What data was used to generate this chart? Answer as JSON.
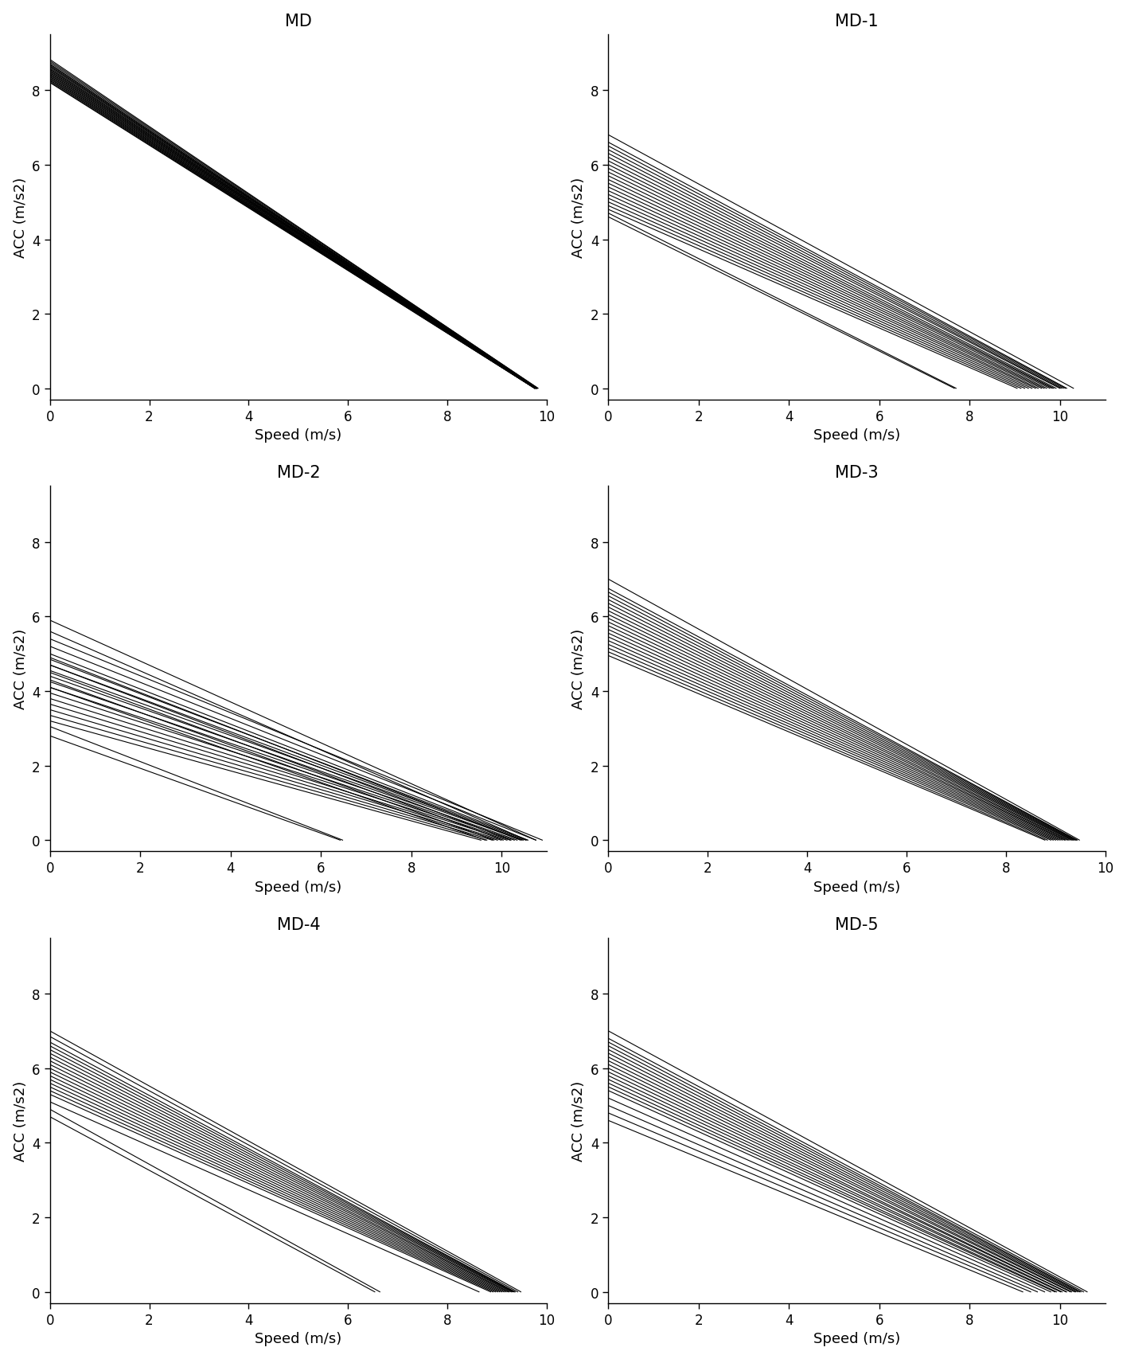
{
  "subplots": [
    {
      "title": "MD",
      "xlim": [
        0,
        10
      ],
      "ylim": [
        -0.3,
        9.5
      ],
      "xticks": [
        0,
        2,
        4,
        6,
        8,
        10
      ],
      "yticks": [
        0,
        2,
        4,
        6,
        8
      ],
      "lines": [
        {
          "intercept": 8.82,
          "slope": 0.898
        },
        {
          "intercept": 8.78,
          "slope": 0.893
        },
        {
          "intercept": 8.74,
          "slope": 0.89
        },
        {
          "intercept": 8.7,
          "slope": 0.887
        },
        {
          "intercept": 8.68,
          "slope": 0.885
        },
        {
          "intercept": 8.65,
          "slope": 0.882
        },
        {
          "intercept": 8.63,
          "slope": 0.88
        },
        {
          "intercept": 8.6,
          "slope": 0.877
        },
        {
          "intercept": 8.57,
          "slope": 0.875
        },
        {
          "intercept": 8.55,
          "slope": 0.873
        },
        {
          "intercept": 8.52,
          "slope": 0.87
        },
        {
          "intercept": 8.5,
          "slope": 0.868
        },
        {
          "intercept": 8.47,
          "slope": 0.865
        },
        {
          "intercept": 8.45,
          "slope": 0.863
        },
        {
          "intercept": 8.42,
          "slope": 0.861
        },
        {
          "intercept": 8.4,
          "slope": 0.859
        },
        {
          "intercept": 8.37,
          "slope": 0.857
        },
        {
          "intercept": 8.35,
          "slope": 0.855
        },
        {
          "intercept": 8.32,
          "slope": 0.852
        },
        {
          "intercept": 8.3,
          "slope": 0.85
        },
        {
          "intercept": 8.27,
          "slope": 0.847
        },
        {
          "intercept": 8.25,
          "slope": 0.845
        },
        {
          "intercept": 8.22,
          "slope": 0.842
        },
        {
          "intercept": 8.2,
          "slope": 0.84
        }
      ]
    },
    {
      "title": "MD-1",
      "xlim": [
        0,
        11
      ],
      "ylim": [
        -0.3,
        9.5
      ],
      "xticks": [
        0,
        2,
        4,
        6,
        8,
        10
      ],
      "yticks": [
        0,
        2,
        4,
        6,
        8
      ],
      "lines": [
        {
          "intercept": 6.8,
          "slope": 0.66
        },
        {
          "intercept": 6.6,
          "slope": 0.65
        },
        {
          "intercept": 6.5,
          "slope": 0.642
        },
        {
          "intercept": 6.4,
          "slope": 0.635
        },
        {
          "intercept": 6.3,
          "slope": 0.628
        },
        {
          "intercept": 6.2,
          "slope": 0.62
        },
        {
          "intercept": 6.1,
          "slope": 0.615
        },
        {
          "intercept": 6.0,
          "slope": 0.608
        },
        {
          "intercept": 5.9,
          "slope": 0.6
        },
        {
          "intercept": 5.8,
          "slope": 0.593
        },
        {
          "intercept": 5.7,
          "slope": 0.587
        },
        {
          "intercept": 5.6,
          "slope": 0.58
        },
        {
          "intercept": 5.5,
          "slope": 0.573
        },
        {
          "intercept": 5.4,
          "slope": 0.567
        },
        {
          "intercept": 5.3,
          "slope": 0.56
        },
        {
          "intercept": 5.2,
          "slope": 0.554
        },
        {
          "intercept": 5.1,
          "slope": 0.548
        },
        {
          "intercept": 5.0,
          "slope": 0.542
        },
        {
          "intercept": 4.9,
          "slope": 0.536
        },
        {
          "intercept": 4.8,
          "slope": 0.53
        },
        {
          "intercept": 4.7,
          "slope": 0.61
        },
        {
          "intercept": 4.6,
          "slope": 0.6
        }
      ]
    },
    {
      "title": "MD-2",
      "xlim": [
        0,
        11
      ],
      "ylim": [
        -0.3,
        9.5
      ],
      "xticks": [
        0,
        2,
        4,
        6,
        8,
        10
      ],
      "yticks": [
        0,
        2,
        4,
        6,
        8
      ],
      "lines": [
        {
          "intercept": 5.9,
          "slope": 0.548
        },
        {
          "intercept": 5.6,
          "slope": 0.53
        },
        {
          "intercept": 5.4,
          "slope": 0.495
        },
        {
          "intercept": 5.2,
          "slope": 0.483
        },
        {
          "intercept": 5.0,
          "slope": 0.472
        },
        {
          "intercept": 4.85,
          "slope": 0.46
        },
        {
          "intercept": 4.7,
          "slope": 0.448
        },
        {
          "intercept": 4.55,
          "slope": 0.435
        },
        {
          "intercept": 4.4,
          "slope": 0.425
        },
        {
          "intercept": 4.25,
          "slope": 0.413
        },
        {
          "intercept": 4.1,
          "slope": 0.402
        },
        {
          "intercept": 3.95,
          "slope": 0.39
        },
        {
          "intercept": 3.8,
          "slope": 0.38
        },
        {
          "intercept": 3.65,
          "slope": 0.368
        },
        {
          "intercept": 3.5,
          "slope": 0.357
        },
        {
          "intercept": 3.35,
          "slope": 0.346
        },
        {
          "intercept": 3.2,
          "slope": 0.335
        },
        {
          "intercept": 3.05,
          "slope": 0.47
        },
        {
          "intercept": 2.8,
          "slope": 0.435
        },
        {
          "intercept": 4.9,
          "slope": 0.47
        },
        {
          "intercept": 4.7,
          "slope": 0.46
        },
        {
          "intercept": 4.5,
          "slope": 0.448
        },
        {
          "intercept": 4.3,
          "slope": 0.437
        },
        {
          "intercept": 4.1,
          "slope": 0.425
        }
      ]
    },
    {
      "title": "MD-3",
      "xlim": [
        0,
        10
      ],
      "ylim": [
        -0.3,
        9.5
      ],
      "xticks": [
        0,
        2,
        4,
        6,
        8,
        10
      ],
      "yticks": [
        0,
        2,
        4,
        6,
        8
      ],
      "lines": [
        {
          "intercept": 7.0,
          "slope": 0.738
        },
        {
          "intercept": 6.75,
          "slope": 0.715
        },
        {
          "intercept": 6.65,
          "slope": 0.705
        },
        {
          "intercept": 6.55,
          "slope": 0.696
        },
        {
          "intercept": 6.45,
          "slope": 0.687
        },
        {
          "intercept": 6.35,
          "slope": 0.678
        },
        {
          "intercept": 6.25,
          "slope": 0.669
        },
        {
          "intercept": 6.15,
          "slope": 0.66
        },
        {
          "intercept": 6.05,
          "slope": 0.652
        },
        {
          "intercept": 5.95,
          "slope": 0.643
        },
        {
          "intercept": 5.85,
          "slope": 0.635
        },
        {
          "intercept": 5.75,
          "slope": 0.626
        },
        {
          "intercept": 5.65,
          "slope": 0.618
        },
        {
          "intercept": 5.55,
          "slope": 0.61
        },
        {
          "intercept": 5.45,
          "slope": 0.602
        },
        {
          "intercept": 5.35,
          "slope": 0.594
        },
        {
          "intercept": 5.25,
          "slope": 0.586
        },
        {
          "intercept": 5.15,
          "slope": 0.578
        },
        {
          "intercept": 5.05,
          "slope": 0.571
        },
        {
          "intercept": 4.95,
          "slope": 0.563
        }
      ]
    },
    {
      "title": "MD-4",
      "xlim": [
        0,
        10
      ],
      "ylim": [
        -0.3,
        9.5
      ],
      "xticks": [
        0,
        2,
        4,
        6,
        8,
        10
      ],
      "yticks": [
        0,
        2,
        4,
        6,
        8
      ],
      "lines": [
        {
          "intercept": 7.0,
          "slope": 0.738
        },
        {
          "intercept": 6.85,
          "slope": 0.727
        },
        {
          "intercept": 6.7,
          "slope": 0.715
        },
        {
          "intercept": 6.6,
          "slope": 0.705
        },
        {
          "intercept": 6.5,
          "slope": 0.696
        },
        {
          "intercept": 6.4,
          "slope": 0.687
        },
        {
          "intercept": 6.3,
          "slope": 0.678
        },
        {
          "intercept": 6.2,
          "slope": 0.67
        },
        {
          "intercept": 6.1,
          "slope": 0.661
        },
        {
          "intercept": 6.0,
          "slope": 0.653
        },
        {
          "intercept": 5.9,
          "slope": 0.645
        },
        {
          "intercept": 5.8,
          "slope": 0.637
        },
        {
          "intercept": 5.7,
          "slope": 0.629
        },
        {
          "intercept": 5.6,
          "slope": 0.621
        },
        {
          "intercept": 5.5,
          "slope": 0.613
        },
        {
          "intercept": 5.4,
          "slope": 0.605
        },
        {
          "intercept": 5.3,
          "slope": 0.597
        },
        {
          "intercept": 5.1,
          "slope": 0.59
        },
        {
          "intercept": 4.9,
          "slope": 0.737
        },
        {
          "intercept": 4.7,
          "slope": 0.718
        }
      ]
    },
    {
      "title": "MD-5",
      "xlim": [
        0,
        11
      ],
      "ylim": [
        -0.3,
        9.5
      ],
      "xticks": [
        0,
        2,
        4,
        6,
        8,
        10
      ],
      "yticks": [
        0,
        2,
        4,
        6,
        8
      ],
      "lines": [
        {
          "intercept": 7.0,
          "slope": 0.66
        },
        {
          "intercept": 6.8,
          "slope": 0.646
        },
        {
          "intercept": 6.6,
          "slope": 0.632
        },
        {
          "intercept": 6.4,
          "slope": 0.618
        },
        {
          "intercept": 6.2,
          "slope": 0.604
        },
        {
          "intercept": 6.0,
          "slope": 0.591
        },
        {
          "intercept": 5.8,
          "slope": 0.577
        },
        {
          "intercept": 5.6,
          "slope": 0.564
        },
        {
          "intercept": 5.4,
          "slope": 0.551
        },
        {
          "intercept": 5.2,
          "slope": 0.538
        },
        {
          "intercept": 5.0,
          "slope": 0.526
        },
        {
          "intercept": 4.8,
          "slope": 0.513
        },
        {
          "intercept": 4.6,
          "slope": 0.501
        },
        {
          "intercept": 6.7,
          "slope": 0.64
        },
        {
          "intercept": 6.5,
          "slope": 0.625
        },
        {
          "intercept": 6.3,
          "slope": 0.61
        },
        {
          "intercept": 6.1,
          "slope": 0.596
        },
        {
          "intercept": 5.9,
          "slope": 0.582
        },
        {
          "intercept": 5.7,
          "slope": 0.569
        },
        {
          "intercept": 5.5,
          "slope": 0.556
        }
      ]
    }
  ],
  "xlabel": "Speed (m/s)",
  "ylabel": "ACC (m/s2)",
  "line_color": "#000000",
  "line_width": 0.8,
  "bg_color": "#ffffff",
  "title_fontsize": 15,
  "label_fontsize": 13,
  "tick_fontsize": 12
}
